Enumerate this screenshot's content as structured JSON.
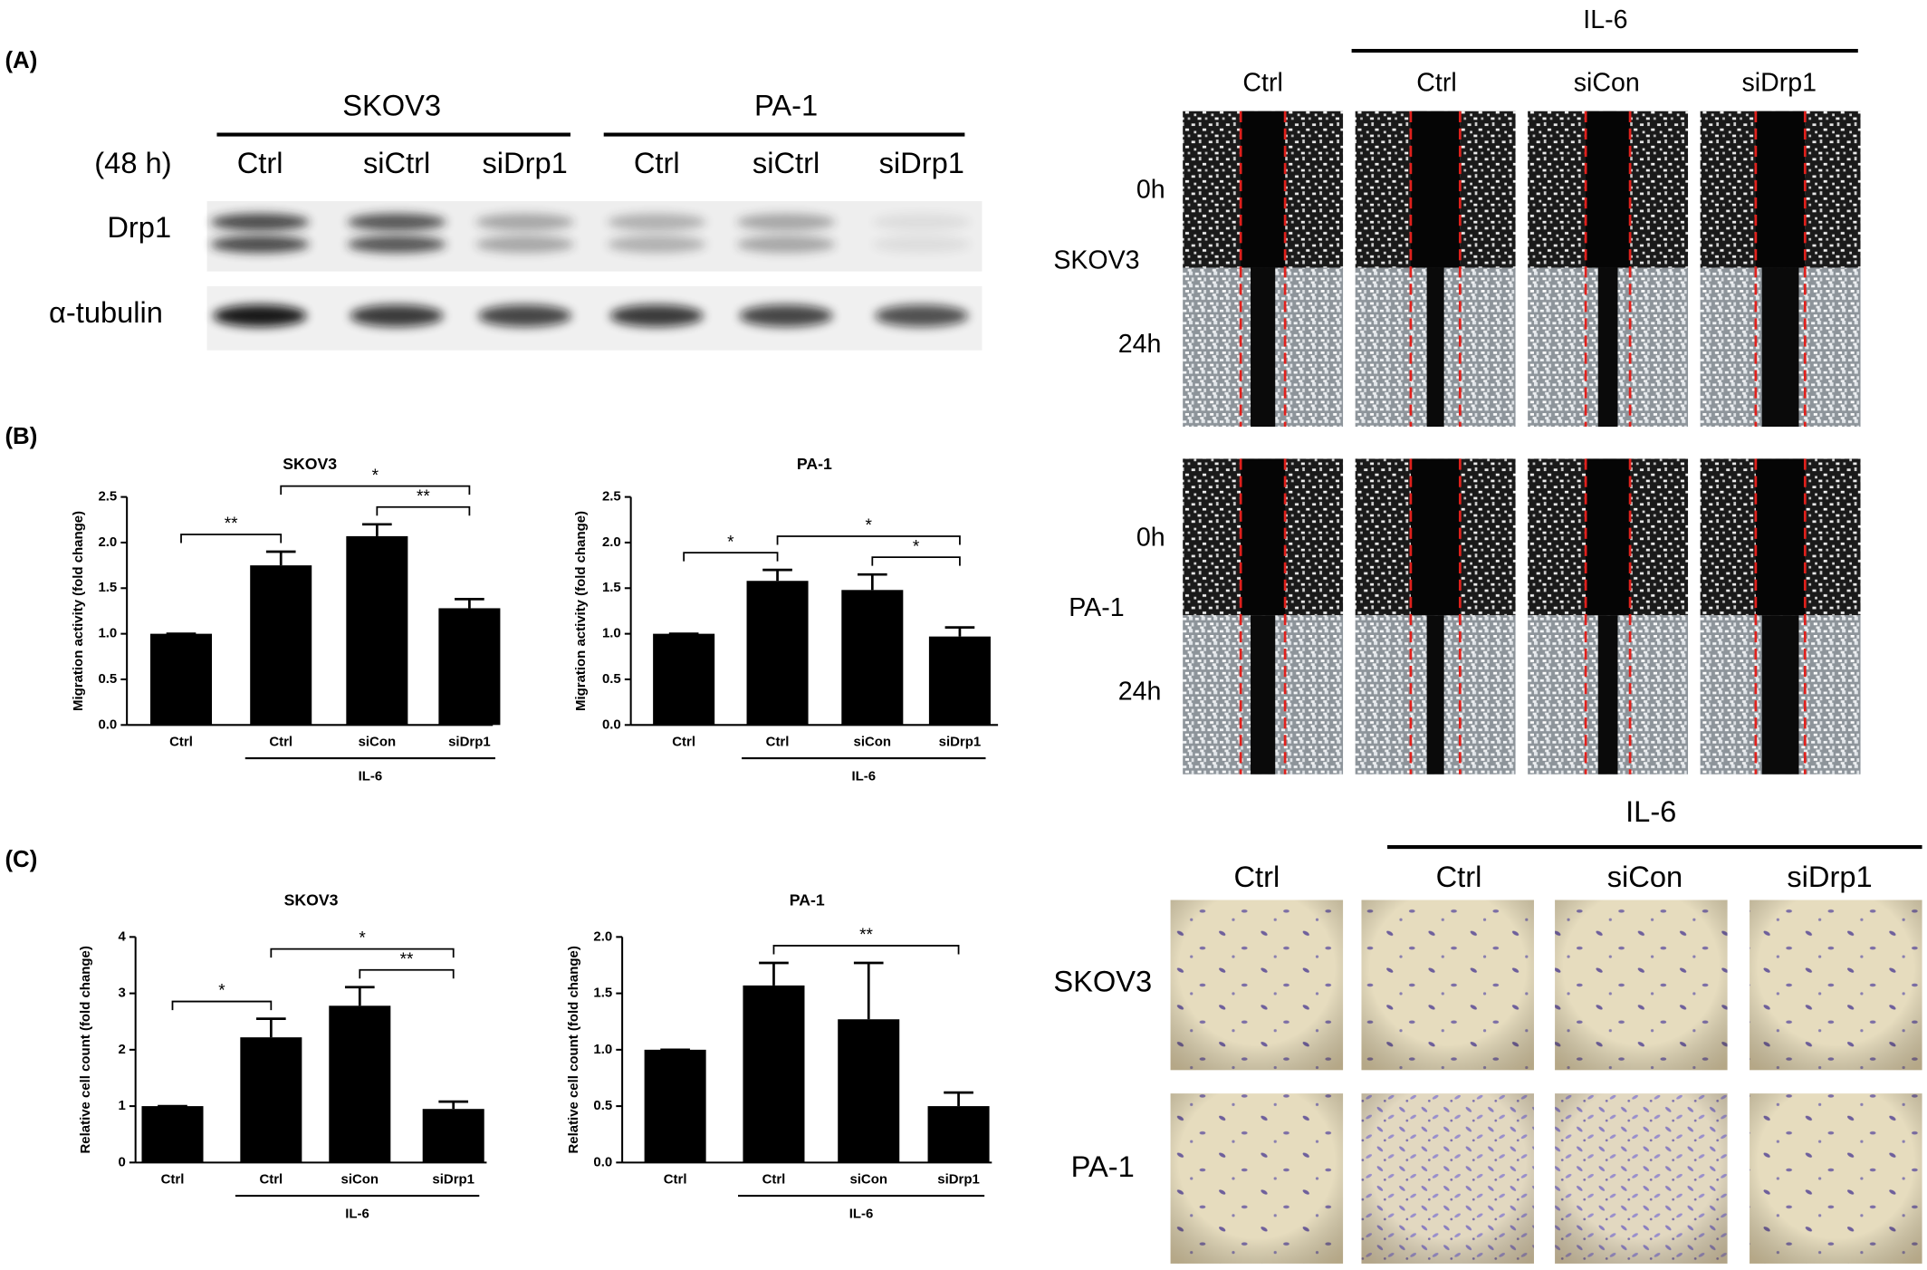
{
  "panel_labels": [
    "(A)",
    "(B)",
    "(C)"
  ],
  "western_blot": {
    "cell_lines": [
      "SKOV3",
      "PA-1"
    ],
    "time": "(48 h)",
    "lanes": [
      "Ctrl",
      "siCtrl",
      "siDrp1",
      "Ctrl",
      "siCtrl",
      "siDrp1"
    ],
    "proteins": [
      "Drp1",
      "α-tubulin"
    ]
  },
  "wound_healing": {
    "group": "IL-6",
    "columns": [
      "Ctrl",
      "Ctrl",
      "siCon",
      "siDrp1"
    ],
    "rows": [
      {
        "cell_line": "SKOV3",
        "times": [
          "0h",
          "24h"
        ]
      },
      {
        "cell_line": "PA-1",
        "times": [
          "0h",
          "24h"
        ]
      }
    ]
  },
  "transwell": {
    "group": "IL-6",
    "columns": [
      "Ctrl",
      "Ctrl",
      "siCon",
      "siDrp1"
    ],
    "rows": [
      "SKOV3",
      "PA-1"
    ]
  },
  "chart_data": [
    {
      "type": "bar",
      "title": "SKOV3",
      "y_label": "Migration activity (fold change)",
      "categories": [
        "Ctrl",
        "Ctrl",
        "siCon",
        "siDrp1"
      ],
      "group": {
        "label": "IL-6",
        "span": [
          1,
          3
        ]
      },
      "values": [
        1.0,
        1.75,
        2.07,
        1.28
      ],
      "errors": [
        0,
        0.15,
        0.13,
        0.1
      ],
      "color": "#000000",
      "ylim": [
        0,
        2.5
      ],
      "yticks": [
        {
          "value": 0,
          "label": "0.0"
        },
        {
          "value": 0.5,
          "label": "0.5"
        },
        {
          "value": 1,
          "label": "1.0"
        },
        {
          "value": 1.5,
          "label": "1.5"
        },
        {
          "value": 2,
          "label": "2.0"
        },
        {
          "value": 2.5,
          "label": "2.5"
        }
      ],
      "significance": [
        {
          "label": "**",
          "span": [
            0,
            1
          ]
        },
        {
          "label": "*",
          "span": [
            1,
            3
          ]
        },
        {
          "label": "**",
          "span": [
            2,
            3
          ]
        }
      ]
    },
    {
      "type": "bar",
      "title": "PA-1",
      "y_label": "Migration activity (fold change)",
      "categories": [
        "Ctrl",
        "Ctrl",
        "siCon",
        "siDrp1"
      ],
      "group": {
        "label": "IL-6",
        "span": [
          1,
          3
        ]
      },
      "values": [
        1.0,
        1.58,
        1.48,
        0.97
      ],
      "errors": [
        0,
        0.12,
        0.17,
        0.1
      ],
      "color": "#000000",
      "ylim": [
        0,
        2.5
      ],
      "yticks": [
        {
          "value": 0,
          "label": "0.0"
        },
        {
          "value": 0.5,
          "label": "0.5"
        },
        {
          "value": 1,
          "label": "1.0"
        },
        {
          "value": 1.5,
          "label": "1.5"
        },
        {
          "value": 2,
          "label": "2.0"
        },
        {
          "value": 2.5,
          "label": "2.5"
        }
      ],
      "significance": [
        {
          "label": "*",
          "span": [
            0,
            1
          ]
        },
        {
          "label": "*",
          "span": [
            1,
            3
          ]
        },
        {
          "label": "*",
          "span": [
            2,
            3
          ]
        }
      ]
    },
    {
      "type": "bar",
      "title": "SKOV3",
      "y_label": "Relative cell count (fold change)",
      "categories": [
        "Ctrl",
        "Ctrl",
        "siCon",
        "siDrp1"
      ],
      "group": {
        "label": "IL-6",
        "span": [
          1,
          3
        ]
      },
      "values": [
        1.0,
        2.22,
        2.78,
        0.95
      ],
      "errors": [
        0,
        0.33,
        0.33,
        0.13
      ],
      "color": "#000000",
      "ylim": [
        0,
        4
      ],
      "yticks": [
        0,
        1,
        2,
        3,
        4
      ],
      "significance": [
        {
          "label": "*",
          "span": [
            0,
            1
          ]
        },
        {
          "label": "*",
          "span": [
            1,
            3
          ]
        },
        {
          "label": "**",
          "span": [
            2,
            3
          ]
        }
      ]
    },
    {
      "type": "bar",
      "title": "PA-1",
      "y_label": "Relative cell count (fold change)",
      "categories": [
        "Ctrl",
        "Ctrl",
        "siCon",
        "siDrp1"
      ],
      "group": {
        "label": "IL-6",
        "span": [
          1,
          3
        ]
      },
      "values": [
        1.0,
        1.57,
        1.27,
        0.5
      ],
      "errors": [
        0,
        0.2,
        0.5,
        0.12
      ],
      "color": "#000000",
      "ylim": [
        0,
        2.0
      ],
      "yticks": [
        {
          "value": 0,
          "label": "0.0"
        },
        {
          "value": 0.5,
          "label": "0.5"
        },
        {
          "value": 1,
          "label": "1.0"
        },
        {
          "value": 1.5,
          "label": "1.5"
        },
        {
          "value": 2,
          "label": "2.0"
        }
      ],
      "significance": [
        {
          "label": "**",
          "span": [
            1,
            3
          ]
        }
      ]
    }
  ]
}
